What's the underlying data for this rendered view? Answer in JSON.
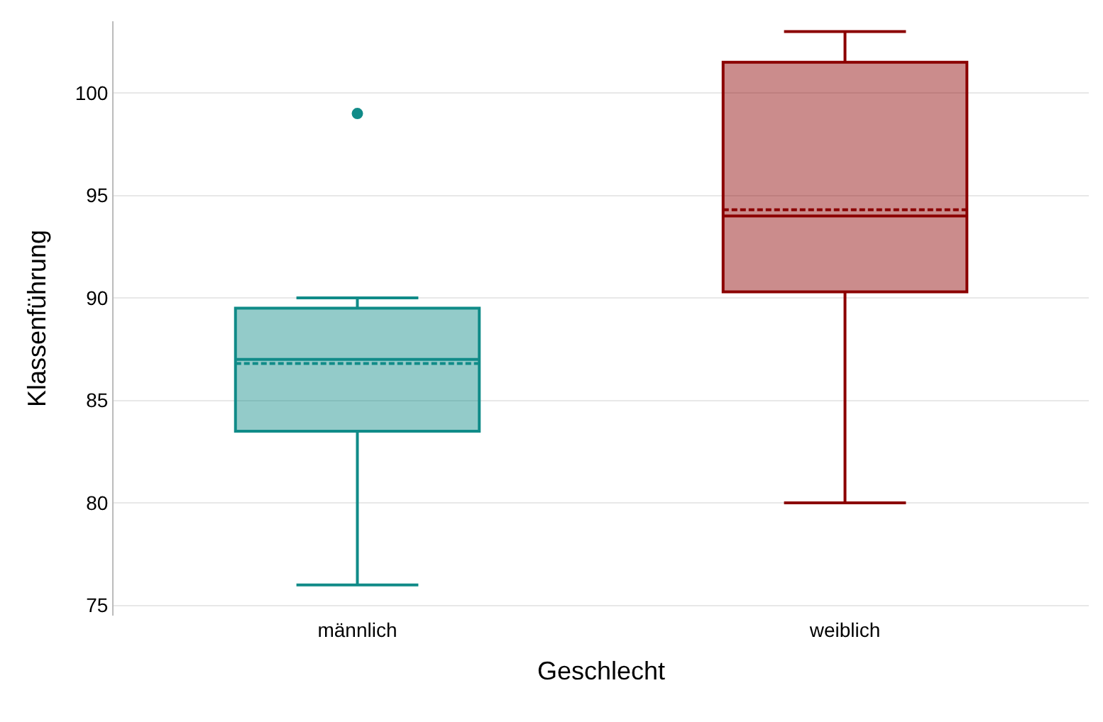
{
  "chart_data": {
    "type": "box",
    "xlabel": "Geschlecht",
    "ylabel": "Klassenführung",
    "categories": [
      "männlich",
      "weiblich"
    ],
    "series": [
      {
        "colors": [
          "#108b88",
          "#8b0000"
        ],
        "boxes": [
          {
            "low": 76,
            "q1": 83.5,
            "median": 87.0,
            "q3": 89.5,
            "high": 90,
            "mean": 86.8,
            "outliers": [
              99
            ]
          },
          {
            "low": 80,
            "q1": 90.3,
            "median": 94.0,
            "q3": 101.5,
            "high": 103,
            "mean": 94.3
          }
        ]
      }
    ],
    "ylim": [
      74.5,
      103.5
    ],
    "yticks": [
      75,
      80,
      85,
      90,
      95,
      100
    ],
    "grid": "y"
  }
}
